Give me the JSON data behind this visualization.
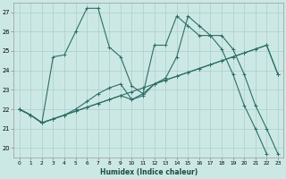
{
  "xlabel": "Humidex (Indice chaleur)",
  "bg_color": "#cce8e5",
  "grid_color": "#aacfcb",
  "line_color": "#2d6e68",
  "xlim": [
    -0.5,
    23.5
  ],
  "ylim": [
    19.5,
    27.5
  ],
  "xticks": [
    0,
    1,
    2,
    3,
    4,
    5,
    6,
    7,
    8,
    9,
    10,
    11,
    12,
    13,
    14,
    15,
    16,
    17,
    18,
    19,
    20,
    21,
    22,
    23
  ],
  "yticks": [
    20,
    21,
    22,
    23,
    24,
    25,
    26,
    27
  ],
  "line1_x": [
    0,
    1,
    2,
    3,
    4,
    5,
    6,
    7,
    8,
    9,
    10,
    11,
    12,
    13,
    14,
    15,
    16,
    17,
    18,
    19,
    20,
    21,
    22
  ],
  "line1_y": [
    22.0,
    21.7,
    21.3,
    24.7,
    24.8,
    26.0,
    27.2,
    27.2,
    25.2,
    24.7,
    23.2,
    22.8,
    25.3,
    25.3,
    26.8,
    26.3,
    25.8,
    25.8,
    25.1,
    23.8,
    22.2,
    21.0,
    19.7
  ],
  "line2_x": [
    0,
    1,
    2,
    3,
    4,
    5,
    6,
    7,
    8,
    9,
    10,
    11,
    12,
    13,
    14,
    15,
    16,
    17,
    18,
    19,
    20,
    21,
    22,
    23
  ],
  "line2_y": [
    22.0,
    21.7,
    21.3,
    21.5,
    21.7,
    21.9,
    22.1,
    22.3,
    22.5,
    22.7,
    22.9,
    23.1,
    23.3,
    23.5,
    23.7,
    23.9,
    24.1,
    24.3,
    24.5,
    24.7,
    24.9,
    25.1,
    25.3,
    23.8
  ],
  "line3_x": [
    0,
    1,
    2,
    3,
    4,
    5,
    6,
    7,
    8,
    9,
    10,
    11,
    12,
    13,
    14,
    15,
    16,
    17,
    18,
    19,
    20,
    21,
    22,
    23
  ],
  "line3_y": [
    22.0,
    21.7,
    21.3,
    21.5,
    21.7,
    21.9,
    22.1,
    22.3,
    22.5,
    22.7,
    22.5,
    22.7,
    23.3,
    23.5,
    23.7,
    23.9,
    24.1,
    24.3,
    24.5,
    24.7,
    24.9,
    25.1,
    25.3,
    23.8
  ],
  "line4_x": [
    0,
    1,
    2,
    3,
    4,
    5,
    6,
    7,
    8,
    9,
    10,
    11,
    12,
    13,
    14,
    15,
    16,
    17,
    18,
    19,
    20,
    21,
    22,
    23
  ],
  "line4_y": [
    22.0,
    21.7,
    21.3,
    21.5,
    21.7,
    22.0,
    22.4,
    22.8,
    23.1,
    23.3,
    22.5,
    22.8,
    23.3,
    23.6,
    24.7,
    26.8,
    26.3,
    25.8,
    25.8,
    25.1,
    23.8,
    22.2,
    21.0,
    19.7
  ]
}
